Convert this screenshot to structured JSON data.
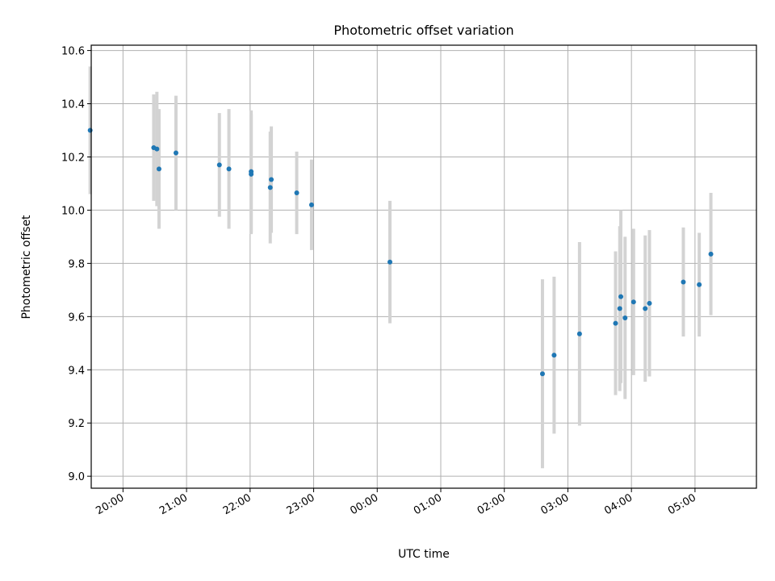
{
  "chart_data": {
    "type": "scatter",
    "title": "Photometric offset variation",
    "xlabel": "UTC time",
    "ylabel": "Photometric offset",
    "x_unit": "UTC time (HH:MM), night spanning midnight",
    "x_ticks": [
      "20:00",
      "21:00",
      "22:00",
      "23:00",
      "00:00",
      "01:00",
      "02:00",
      "03:00",
      "04:00",
      "05:00"
    ],
    "y_ticks": [
      "9.0",
      "9.2",
      "9.4",
      "9.6",
      "9.8",
      "10.0",
      "10.2",
      "10.4",
      "10.6"
    ],
    "xlim": [
      "19:30",
      "05:58"
    ],
    "ylim": [
      8.955,
      10.62
    ],
    "grid": true,
    "colors": {
      "marker": "#1f77b4",
      "errorbar": "#d3d3d3",
      "grid": "#b0b0b0"
    },
    "points": [
      {
        "x": "19:29",
        "y": 10.3,
        "err": 0.24
      },
      {
        "x": "20:29",
        "y": 10.235,
        "err": 0.2
      },
      {
        "x": "20:32",
        "y": 10.23,
        "err": 0.215
      },
      {
        "x": "20:34",
        "y": 10.155,
        "err": 0.225
      },
      {
        "x": "20:50",
        "y": 10.215,
        "err": 0.215
      },
      {
        "x": "21:31",
        "y": 10.17,
        "err": 0.195
      },
      {
        "x": "21:40",
        "y": 10.155,
        "err": 0.225
      },
      {
        "x": "22:01",
        "y": 10.145,
        "err": 0.23
      },
      {
        "x": "22:01",
        "y": 10.135,
        "err": 0.225
      },
      {
        "x": "22:19",
        "y": 10.085,
        "err": 0.21
      },
      {
        "x": "22:20",
        "y": 10.115,
        "err": 0.2
      },
      {
        "x": "22:44",
        "y": 10.065,
        "err": 0.155
      },
      {
        "x": "22:58",
        "y": 10.02,
        "err": 0.17
      },
      {
        "x": "00:12",
        "y": 9.805,
        "err": 0.23
      },
      {
        "x": "02:36",
        "y": 9.385,
        "err": 0.355
      },
      {
        "x": "02:47",
        "y": 9.455,
        "err": 0.295
      },
      {
        "x": "03:11",
        "y": 9.535,
        "err": 0.345
      },
      {
        "x": "03:45",
        "y": 9.575,
        "err": 0.27
      },
      {
        "x": "03:49",
        "y": 9.63,
        "err": 0.31
      },
      {
        "x": "03:50",
        "y": 9.675,
        "err": 0.325
      },
      {
        "x": "03:54",
        "y": 9.595,
        "err": 0.305
      },
      {
        "x": "04:02",
        "y": 9.655,
        "err": 0.275
      },
      {
        "x": "04:13",
        "y": 9.63,
        "err": 0.275
      },
      {
        "x": "04:17",
        "y": 9.65,
        "err": 0.275
      },
      {
        "x": "04:49",
        "y": 9.73,
        "err": 0.205
      },
      {
        "x": "05:04",
        "y": 9.72,
        "err": 0.195
      },
      {
        "x": "05:15",
        "y": 9.835,
        "err": 0.23
      }
    ]
  }
}
